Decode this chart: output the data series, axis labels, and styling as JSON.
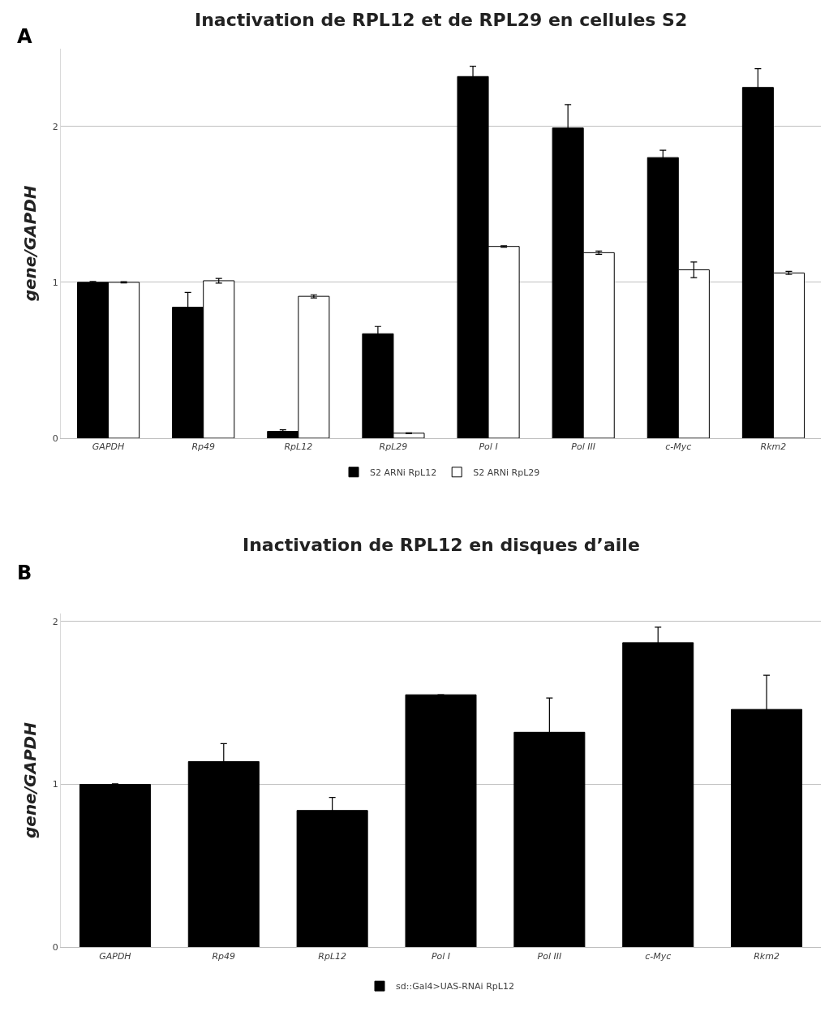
{
  "chart_data": [
    {
      "type": "bar",
      "title": "Inactivation de RPL12 et de RPL29 en cellules S2",
      "ylabel": "gene/GAPDH",
      "annotations": [
        "A"
      ],
      "categories": [
        "GAPDH",
        "Rp49",
        "RpL12",
        "RpL29",
        "Pol I",
        "Pol III",
        "c-Myc",
        "Rkm2"
      ],
      "series": [
        {
          "name": "S2 ARNi RpL12",
          "color": "#000000",
          "values": [
            1.0,
            0.84,
            0.044,
            0.67,
            2.32,
            1.99,
            1.8,
            2.25
          ],
          "errors": [
            0.005,
            0.095,
            0.01,
            0.047,
            0.066,
            0.15,
            0.047,
            0.12
          ]
        },
        {
          "name": "S2 ARNi RpL29",
          "color": "#ffffff",
          "values": [
            1.0,
            1.01,
            0.91,
            0.032,
            1.23,
            1.19,
            1.08,
            1.06
          ],
          "errors": [
            0.004,
            0.015,
            0.01,
            0.003,
            0.005,
            0.01,
            0.05,
            0.01
          ]
        }
      ],
      "ylim": [
        0,
        2.5
      ],
      "yticks": [
        0,
        1,
        2
      ],
      "grid": "y",
      "legend": "bottom"
    },
    {
      "type": "bar",
      "title": "Inactivation de RPL12 en disques d’aile",
      "ylabel": "gene/GAPDH",
      "annotations": [
        "B"
      ],
      "categories": [
        "GAPDH",
        "Rp49",
        "RpL12",
        "Pol I",
        "Pol III",
        "c-Myc",
        "Rkm2"
      ],
      "series": [
        {
          "name": "sd::Gal4>UAS-RNAi RpL12",
          "color": "#000000",
          "values": [
            1.0,
            1.14,
            0.84,
            1.55,
            1.32,
            1.87,
            1.46
          ],
          "errors": [
            0.004,
            0.11,
            0.08,
            null,
            0.21,
            0.095,
            0.21
          ]
        }
      ],
      "ylim": [
        0,
        2.05
      ],
      "yticks": [
        0,
        1,
        2
      ],
      "grid": "y",
      "legend": "bottom"
    }
  ]
}
